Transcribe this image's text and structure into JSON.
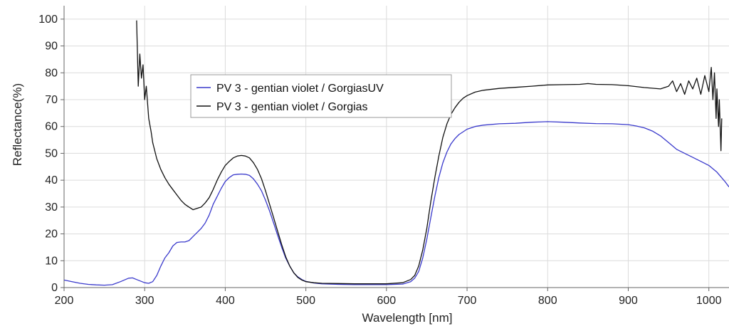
{
  "chart_data": {
    "type": "line",
    "title": "",
    "xlabel": "Wavelength [nm]",
    "ylabel": "Reflectance(%)",
    "xlim": [
      200,
      1025
    ],
    "ylim": [
      0,
      105
    ],
    "x_ticks": [
      200,
      300,
      400,
      500,
      600,
      700,
      800,
      900,
      1000
    ],
    "y_ticks": [
      0,
      10,
      20,
      30,
      40,
      50,
      60,
      70,
      80,
      90,
      100
    ],
    "grid": true,
    "legend_position": "upper-left-center",
    "series": [
      {
        "name": "PV 3 - gentian violet / GorgiasUV",
        "color": "#3a3acc",
        "points": [
          [
            200,
            2.8
          ],
          [
            210,
            2.2
          ],
          [
            220,
            1.6
          ],
          [
            230,
            1.2
          ],
          [
            240,
            1
          ],
          [
            250,
            0.9
          ],
          [
            260,
            1.1
          ],
          [
            270,
            2.2
          ],
          [
            280,
            3.5
          ],
          [
            285,
            3.6
          ],
          [
            290,
            3
          ],
          [
            300,
            1.8
          ],
          [
            305,
            1.6
          ],
          [
            310,
            2.2
          ],
          [
            315,
            4.5
          ],
          [
            320,
            8
          ],
          [
            325,
            11
          ],
          [
            330,
            13
          ],
          [
            335,
            15.5
          ],
          [
            340,
            16.8
          ],
          [
            345,
            17
          ],
          [
            350,
            17
          ],
          [
            355,
            17.5
          ],
          [
            360,
            19
          ],
          [
            365,
            20.5
          ],
          [
            370,
            22
          ],
          [
            375,
            24
          ],
          [
            380,
            27
          ],
          [
            385,
            31
          ],
          [
            390,
            34
          ],
          [
            395,
            37
          ],
          [
            400,
            39.5
          ],
          [
            405,
            41
          ],
          [
            410,
            42
          ],
          [
            415,
            42.2
          ],
          [
            420,
            42.3
          ],
          [
            425,
            42.2
          ],
          [
            430,
            41.8
          ],
          [
            435,
            40.5
          ],
          [
            440,
            38.5
          ],
          [
            445,
            36
          ],
          [
            450,
            32.5
          ],
          [
            455,
            28.5
          ],
          [
            460,
            24
          ],
          [
            465,
            19.5
          ],
          [
            470,
            15
          ],
          [
            475,
            11
          ],
          [
            480,
            8
          ],
          [
            485,
            5.5
          ],
          [
            490,
            4
          ],
          [
            495,
            3
          ],
          [
            500,
            2.3
          ],
          [
            510,
            1.7
          ],
          [
            520,
            1.4
          ],
          [
            540,
            1.2
          ],
          [
            560,
            1.1
          ],
          [
            580,
            1.1
          ],
          [
            600,
            1.1
          ],
          [
            620,
            1.3
          ],
          [
            630,
            2.2
          ],
          [
            635,
            3.5
          ],
          [
            640,
            6
          ],
          [
            645,
            11
          ],
          [
            650,
            18
          ],
          [
            655,
            26
          ],
          [
            660,
            34
          ],
          [
            665,
            41
          ],
          [
            670,
            46.5
          ],
          [
            675,
            50.5
          ],
          [
            680,
            53.5
          ],
          [
            685,
            55.5
          ],
          [
            690,
            57
          ],
          [
            700,
            59
          ],
          [
            710,
            60
          ],
          [
            720,
            60.5
          ],
          [
            740,
            61
          ],
          [
            760,
            61.2
          ],
          [
            780,
            61.6
          ],
          [
            800,
            61.8
          ],
          [
            820,
            61.6
          ],
          [
            840,
            61.3
          ],
          [
            860,
            61.1
          ],
          [
            880,
            61
          ],
          [
            900,
            60.7
          ],
          [
            910,
            60.2
          ],
          [
            920,
            59.5
          ],
          [
            930,
            58.3
          ],
          [
            940,
            56.5
          ],
          [
            950,
            54
          ],
          [
            960,
            51.5
          ],
          [
            970,
            50
          ],
          [
            980,
            48.5
          ],
          [
            990,
            47
          ],
          [
            1000,
            45.5
          ],
          [
            1010,
            43
          ],
          [
            1020,
            39.5
          ],
          [
            1025,
            37.5
          ]
        ]
      },
      {
        "name": "PV 3 - gentian violet / Gorgias",
        "color": "#111111",
        "points": [
          [
            290,
            99.5
          ],
          [
            292,
            75
          ],
          [
            294,
            87
          ],
          [
            296,
            78
          ],
          [
            298,
            83
          ],
          [
            300,
            70
          ],
          [
            302,
            75
          ],
          [
            305,
            63
          ],
          [
            308,
            58
          ],
          [
            310,
            54
          ],
          [
            315,
            48
          ],
          [
            320,
            44
          ],
          [
            325,
            41
          ],
          [
            330,
            38.5
          ],
          [
            335,
            36.5
          ],
          [
            340,
            34.5
          ],
          [
            345,
            32.5
          ],
          [
            350,
            31
          ],
          [
            355,
            30
          ],
          [
            360,
            29
          ],
          [
            365,
            29.5
          ],
          [
            370,
            30
          ],
          [
            375,
            31.5
          ],
          [
            380,
            33.5
          ],
          [
            385,
            36.5
          ],
          [
            390,
            40
          ],
          [
            395,
            43
          ],
          [
            400,
            45.5
          ],
          [
            405,
            47
          ],
          [
            410,
            48.3
          ],
          [
            415,
            49
          ],
          [
            420,
            49.2
          ],
          [
            425,
            49
          ],
          [
            430,
            48.3
          ],
          [
            435,
            46.5
          ],
          [
            440,
            44
          ],
          [
            445,
            40.5
          ],
          [
            450,
            36
          ],
          [
            455,
            31
          ],
          [
            460,
            26
          ],
          [
            465,
            21
          ],
          [
            470,
            16
          ],
          [
            475,
            11.5
          ],
          [
            480,
            8
          ],
          [
            485,
            5.5
          ],
          [
            490,
            3.8
          ],
          [
            495,
            2.8
          ],
          [
            500,
            2.2
          ],
          [
            510,
            1.8
          ],
          [
            520,
            1.6
          ],
          [
            540,
            1.5
          ],
          [
            560,
            1.4
          ],
          [
            580,
            1.4
          ],
          [
            600,
            1.4
          ],
          [
            620,
            1.8
          ],
          [
            630,
            3
          ],
          [
            635,
            4.5
          ],
          [
            640,
            8
          ],
          [
            645,
            14
          ],
          [
            650,
            22
          ],
          [
            655,
            32
          ],
          [
            660,
            41
          ],
          [
            665,
            49
          ],
          [
            670,
            56
          ],
          [
            675,
            61
          ],
          [
            680,
            64.5
          ],
          [
            685,
            67
          ],
          [
            690,
            69
          ],
          [
            695,
            70.5
          ],
          [
            700,
            71.5
          ],
          [
            710,
            72.8
          ],
          [
            720,
            73.5
          ],
          [
            740,
            74.2
          ],
          [
            760,
            74.6
          ],
          [
            780,
            75
          ],
          [
            800,
            75.5
          ],
          [
            820,
            75.6
          ],
          [
            840,
            75.7
          ],
          [
            850,
            76
          ],
          [
            860,
            75.7
          ],
          [
            880,
            75.6
          ],
          [
            900,
            75.2
          ],
          [
            920,
            74.5
          ],
          [
            940,
            74
          ],
          [
            950,
            75
          ],
          [
            955,
            77
          ],
          [
            960,
            73
          ],
          [
            965,
            76
          ],
          [
            970,
            72
          ],
          [
            975,
            77
          ],
          [
            980,
            74
          ],
          [
            985,
            78
          ],
          [
            990,
            72
          ],
          [
            995,
            79
          ],
          [
            1000,
            73
          ],
          [
            1003,
            82
          ],
          [
            1005,
            70
          ],
          [
            1007,
            80
          ],
          [
            1009,
            63
          ],
          [
            1010,
            74
          ],
          [
            1012,
            60
          ],
          [
            1013,
            70
          ],
          [
            1015,
            51
          ],
          [
            1016,
            63
          ]
        ]
      }
    ]
  }
}
